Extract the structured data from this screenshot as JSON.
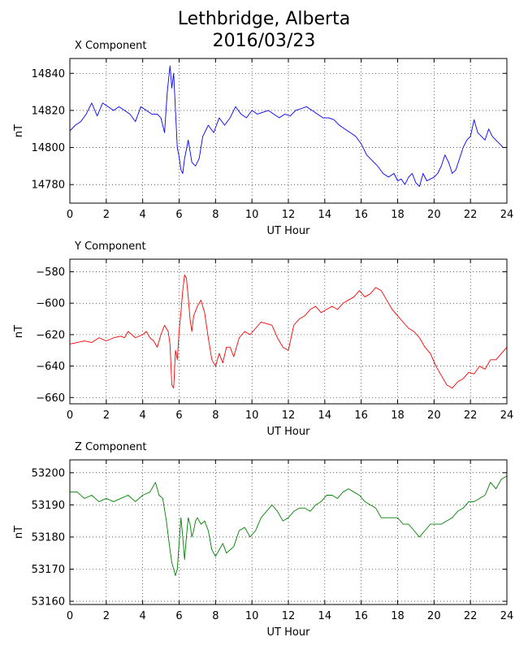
{
  "figure": {
    "title_line1": "Lethbridge, Alberta",
    "title_line2": "2016/03/23"
  },
  "chart_data": [
    {
      "type": "line",
      "title": "X Component",
      "xlabel": "UT Hour",
      "ylabel": "nT",
      "xlim": [
        0,
        24
      ],
      "ylim": [
        14770,
        14848
      ],
      "xticks": [
        0,
        2,
        4,
        6,
        8,
        10,
        12,
        14,
        16,
        18,
        20,
        22,
        24
      ],
      "yticks": [
        14780,
        14800,
        14820,
        14840
      ],
      "grid": true,
      "series": [
        {
          "color": "#0000ff",
          "x": [
            0,
            0.3,
            0.6,
            0.9,
            1.2,
            1.5,
            1.8,
            2.1,
            2.4,
            2.7,
            3.0,
            3.3,
            3.6,
            3.9,
            4.2,
            4.5,
            4.8,
            5.0,
            5.2,
            5.35,
            5.5,
            5.6,
            5.7,
            5.8,
            5.9,
            6.0,
            6.1,
            6.2,
            6.3,
            6.5,
            6.7,
            6.9,
            7.1,
            7.3,
            7.6,
            7.9,
            8.2,
            8.5,
            8.8,
            9.1,
            9.4,
            9.7,
            10.0,
            10.3,
            10.6,
            10.9,
            11.2,
            11.5,
            11.8,
            12.1,
            12.4,
            12.7,
            13.0,
            13.3,
            13.6,
            13.9,
            14.2,
            14.5,
            14.8,
            15.1,
            15.4,
            15.7,
            16.0,
            16.3,
            16.6,
            16.9,
            17.2,
            17.5,
            17.8,
            18.0,
            18.2,
            18.4,
            18.6,
            18.8,
            19.0,
            19.2,
            19.4,
            19.6,
            19.8,
            20.0,
            20.2,
            20.4,
            20.6,
            20.8,
            21.0,
            21.2,
            21.4,
            21.6,
            21.8,
            22.0,
            22.2,
            22.4,
            22.6,
            22.8,
            23.0,
            23.2,
            23.4,
            23.6,
            23.8,
            24.0
          ],
          "y": [
            14809,
            14812,
            14814,
            14818,
            14824,
            14817,
            14824,
            14822,
            14820,
            14822,
            14820,
            14818,
            14814,
            14822,
            14820,
            14818,
            14818,
            14816,
            14808,
            14830,
            14844,
            14832,
            14840,
            14820,
            14800,
            14795,
            14788,
            14786,
            14794,
            14804,
            14792,
            14790,
            14794,
            14806,
            14812,
            14808,
            14816,
            14812,
            14816,
            14822,
            14818,
            14816,
            14820,
            14818,
            14819,
            14820,
            14818,
            14816,
            14818,
            14817,
            14820,
            14821,
            14822,
            14820,
            14818,
            14816,
            14816,
            14815,
            14812,
            14810,
            14808,
            14806,
            14802,
            14796,
            14793,
            14790,
            14786,
            14784,
            14786,
            14782,
            14783,
            14780,
            14784,
            14786,
            14781,
            14779,
            14786,
            14782,
            14783,
            14784,
            14786,
            14790,
            14796,
            14792,
            14786,
            14788,
            14794,
            14800,
            14804,
            14806,
            14815,
            14808,
            14806,
            14804,
            14810,
            14806,
            14804,
            14802,
            14800,
            14800
          ]
        }
      ]
    },
    {
      "type": "line",
      "title": "Y Component",
      "xlabel": "UT Hour",
      "ylabel": "nT",
      "xlim": [
        0,
        24
      ],
      "ylim": [
        -664,
        -572
      ],
      "xticks": [
        0,
        2,
        4,
        6,
        8,
        10,
        12,
        14,
        16,
        18,
        20,
        22,
        24
      ],
      "yticks": [
        -660,
        -640,
        -620,
        -600,
        -580
      ],
      "grid": true,
      "series": [
        {
          "color": "#ff0000",
          "x": [
            0,
            0.4,
            0.8,
            1.2,
            1.6,
            2.0,
            2.4,
            2.8,
            3.0,
            3.2,
            3.6,
            4.0,
            4.2,
            4.4,
            4.6,
            4.8,
            5.0,
            5.2,
            5.4,
            5.5,
            5.6,
            5.7,
            5.8,
            5.9,
            6.0,
            6.1,
            6.2,
            6.3,
            6.4,
            6.5,
            6.6,
            6.7,
            6.8,
            7.0,
            7.2,
            7.4,
            7.6,
            7.8,
            8.0,
            8.2,
            8.4,
            8.6,
            8.8,
            9.0,
            9.3,
            9.6,
            9.9,
            10.2,
            10.5,
            10.8,
            11.1,
            11.4,
            11.7,
            12.0,
            12.3,
            12.6,
            12.9,
            13.2,
            13.5,
            13.8,
            14.1,
            14.4,
            14.7,
            15.0,
            15.3,
            15.6,
            15.9,
            16.2,
            16.5,
            16.8,
            17.1,
            17.4,
            17.7,
            18.0,
            18.3,
            18.6,
            18.9,
            19.2,
            19.5,
            19.8,
            20.1,
            20.4,
            20.7,
            21.0,
            21.3,
            21.6,
            21.9,
            22.2,
            22.5,
            22.8,
            23.1,
            23.4,
            23.7,
            24.0
          ],
          "y": [
            -626,
            -625,
            -624,
            -625,
            -622,
            -624,
            -622,
            -621,
            -622,
            -618,
            -622,
            -620,
            -618,
            -622,
            -624,
            -628,
            -620,
            -614,
            -618,
            -626,
            -652,
            -654,
            -630,
            -636,
            -618,
            -606,
            -592,
            -582,
            -584,
            -596,
            -610,
            -618,
            -608,
            -602,
            -598,
            -606,
            -622,
            -636,
            -640,
            -632,
            -638,
            -628,
            -628,
            -634,
            -622,
            -618,
            -620,
            -616,
            -612,
            -613,
            -614,
            -622,
            -628,
            -630,
            -614,
            -610,
            -608,
            -604,
            -602,
            -606,
            -604,
            -602,
            -604,
            -600,
            -598,
            -596,
            -592,
            -596,
            -594,
            -590,
            -592,
            -598,
            -604,
            -608,
            -612,
            -616,
            -618,
            -622,
            -628,
            -632,
            -640,
            -646,
            -652,
            -654,
            -650,
            -648,
            -644,
            -645,
            -640,
            -642,
            -636,
            -636,
            -632,
            -628
          ]
        }
      ]
    },
    {
      "type": "line",
      "title": "Z Component",
      "xlabel": "UT Hour",
      "ylabel": "nT",
      "xlim": [
        0,
        24
      ],
      "ylim": [
        53159,
        53204
      ],
      "xticks": [
        0,
        2,
        4,
        6,
        8,
        10,
        12,
        14,
        16,
        18,
        20,
        22,
        24
      ],
      "yticks": [
        53160,
        53170,
        53180,
        53190,
        53200
      ],
      "grid": true,
      "series": [
        {
          "color": "#008000",
          "x": [
            0,
            0.4,
            0.8,
            1.2,
            1.6,
            2.0,
            2.4,
            2.8,
            3.2,
            3.6,
            4.0,
            4.4,
            4.7,
            4.9,
            5.1,
            5.3,
            5.5,
            5.6,
            5.7,
            5.8,
            5.9,
            6.0,
            6.1,
            6.2,
            6.3,
            6.4,
            6.5,
            6.6,
            6.7,
            6.8,
            6.9,
            7.0,
            7.2,
            7.4,
            7.6,
            7.8,
            8.0,
            8.2,
            8.4,
            8.6,
            8.8,
            9.0,
            9.3,
            9.6,
            9.9,
            10.2,
            10.5,
            10.8,
            11.1,
            11.4,
            11.7,
            12.0,
            12.3,
            12.6,
            12.9,
            13.2,
            13.5,
            13.8,
            14.1,
            14.4,
            14.7,
            15.0,
            15.3,
            15.6,
            15.9,
            16.2,
            16.5,
            16.8,
            17.1,
            17.4,
            17.7,
            18.0,
            18.3,
            18.6,
            18.9,
            19.2,
            19.5,
            19.8,
            20.1,
            20.4,
            20.7,
            21.0,
            21.3,
            21.6,
            21.9,
            22.2,
            22.5,
            22.8,
            23.1,
            23.4,
            23.7,
            24.0
          ],
          "y": [
            53194,
            53194,
            53192,
            53193,
            53191,
            53192,
            53191,
            53192,
            53193,
            53191,
            53193,
            53194,
            53197,
            53193,
            53192,
            53185,
            53176,
            53172,
            53170,
            53168,
            53170,
            53178,
            53186,
            53180,
            53173,
            53180,
            53186,
            53184,
            53180,
            53182,
            53185,
            53186,
            53184,
            53185,
            53182,
            53176,
            53174,
            53176,
            53178,
            53175,
            53176,
            53177,
            53182,
            53183,
            53180,
            53182,
            53186,
            53188,
            53190,
            53188,
            53185,
            53186,
            53188,
            53189,
            53189,
            53188,
            53190,
            53191,
            53193,
            53193,
            53192,
            53194,
            53195,
            53194,
            53193,
            53191,
            53190,
            53189,
            53186,
            53186,
            53186,
            53186,
            53184,
            53184,
            53182,
            53180,
            53182,
            53184,
            53184,
            53184,
            53185,
            53186,
            53188,
            53189,
            53191,
            53191,
            53192,
            53193,
            53197,
            53195,
            53198,
            53199
          ]
        }
      ]
    }
  ]
}
